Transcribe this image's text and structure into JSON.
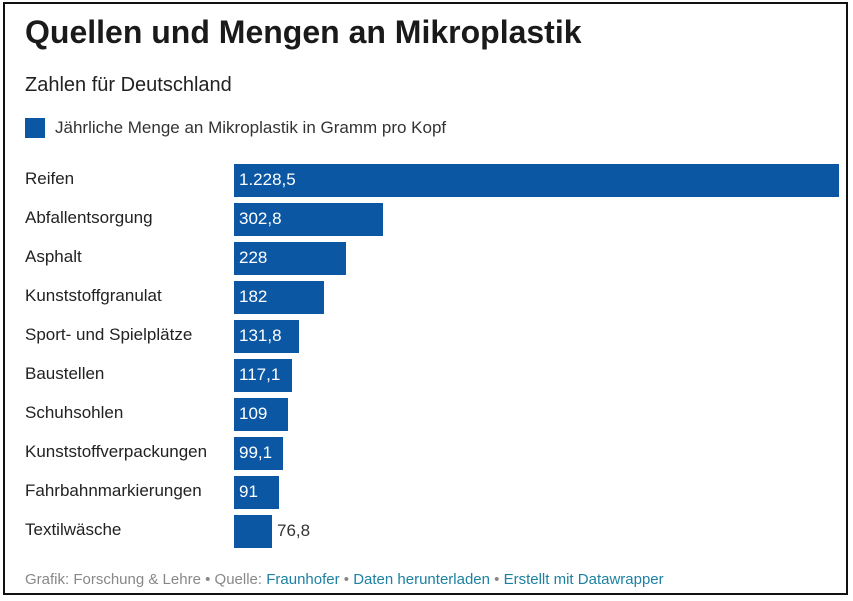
{
  "header": {
    "title": "Quellen und Mengen an Mikroplastik",
    "subtitle": "Zahlen für Deutschland"
  },
  "legend": {
    "label": "Jährliche Menge an Mikroplastik in Gramm pro Kopf",
    "color": "#0b57a4"
  },
  "chart_data": {
    "type": "bar",
    "orientation": "horizontal",
    "title": "Quellen und Mengen an Mikroplastik",
    "subtitle": "Zahlen für Deutschland",
    "categories": [
      "Reifen",
      "Abfallentsorgung",
      "Asphalt",
      "Kunststoffgranulat",
      "Sport- und Spielplätze",
      "Baustellen",
      "Schuhsohlen",
      "Kunststoffverpackungen",
      "Fahrbahnmarkierungen",
      "Textilwäsche"
    ],
    "values": [
      1228.5,
      302.8,
      228,
      182,
      131.8,
      117.1,
      109,
      99.1,
      91,
      76.8
    ],
    "value_labels": [
      "1.228,5",
      "302,8",
      "228",
      "182",
      "131,8",
      "117,1",
      "109",
      "99,1",
      "91",
      "76,8"
    ],
    "series": [
      {
        "name": "Jährliche Menge an Mikroplastik in Gramm pro Kopf",
        "values": [
          1228.5,
          302.8,
          228,
          182,
          131.8,
          117.1,
          109,
          99.1,
          91,
          76.8
        ],
        "color": "#0b57a4"
      }
    ],
    "xlim": [
      0,
      1228.5
    ],
    "grid": false,
    "legend_position": "top-left"
  },
  "footer": {
    "prefix": "Grafik: Forschung & Lehre",
    "sep": "•",
    "source_prefix": "Quelle:",
    "source_link": "Fraunhofer",
    "download_link": "Daten herunterladen",
    "datawrapper_link": "Erstellt mit Datawrapper"
  }
}
